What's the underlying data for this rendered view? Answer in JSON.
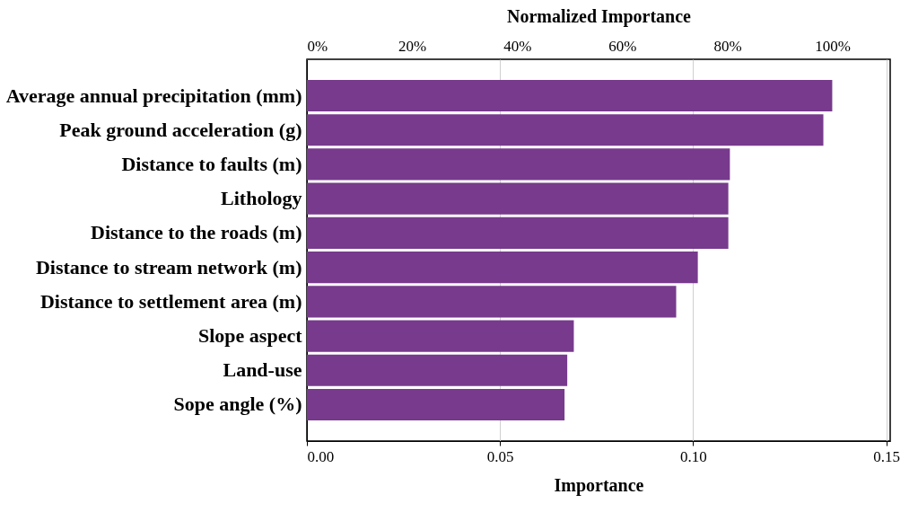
{
  "chart_data": {
    "type": "bar",
    "orientation": "horizontal",
    "xlabel": "Importance",
    "x2label": "Normalized Importance",
    "categories": [
      "Average annual precipitation (mm)",
      "Peak ground acceleration (g)",
      "Distance to faults  (m)",
      "Lithology",
      "Distance to the roads (m)",
      "Distance to stream network (m)",
      "Distance to settlement area (m)",
      "Slope aspect",
      "Land-use",
      "Sope angle (%)"
    ],
    "values": [
      0.136,
      0.1337,
      0.1095,
      0.1091,
      0.1091,
      0.1012,
      0.0956,
      0.0691,
      0.0674,
      0.0667
    ],
    "color": "#773a8c",
    "xlim": [
      0,
      0.151
    ],
    "xticks": [
      {
        "value": 0,
        "label": "0.00"
      },
      {
        "value": 0.05,
        "label": "0.05"
      },
      {
        "value": 0.1,
        "label": "0.10"
      },
      {
        "value": 0.15,
        "label": "0.15"
      }
    ],
    "x2lim": [
      0,
      111
    ],
    "x2ticks": [
      {
        "value": 0,
        "label": "0%"
      },
      {
        "value": 20,
        "label": "20%"
      },
      {
        "value": 40,
        "label": "40%"
      },
      {
        "value": 60,
        "label": "60%"
      },
      {
        "value": 80,
        "label": "80%"
      },
      {
        "value": 100,
        "label": "100%"
      }
    ],
    "grid": "x"
  }
}
